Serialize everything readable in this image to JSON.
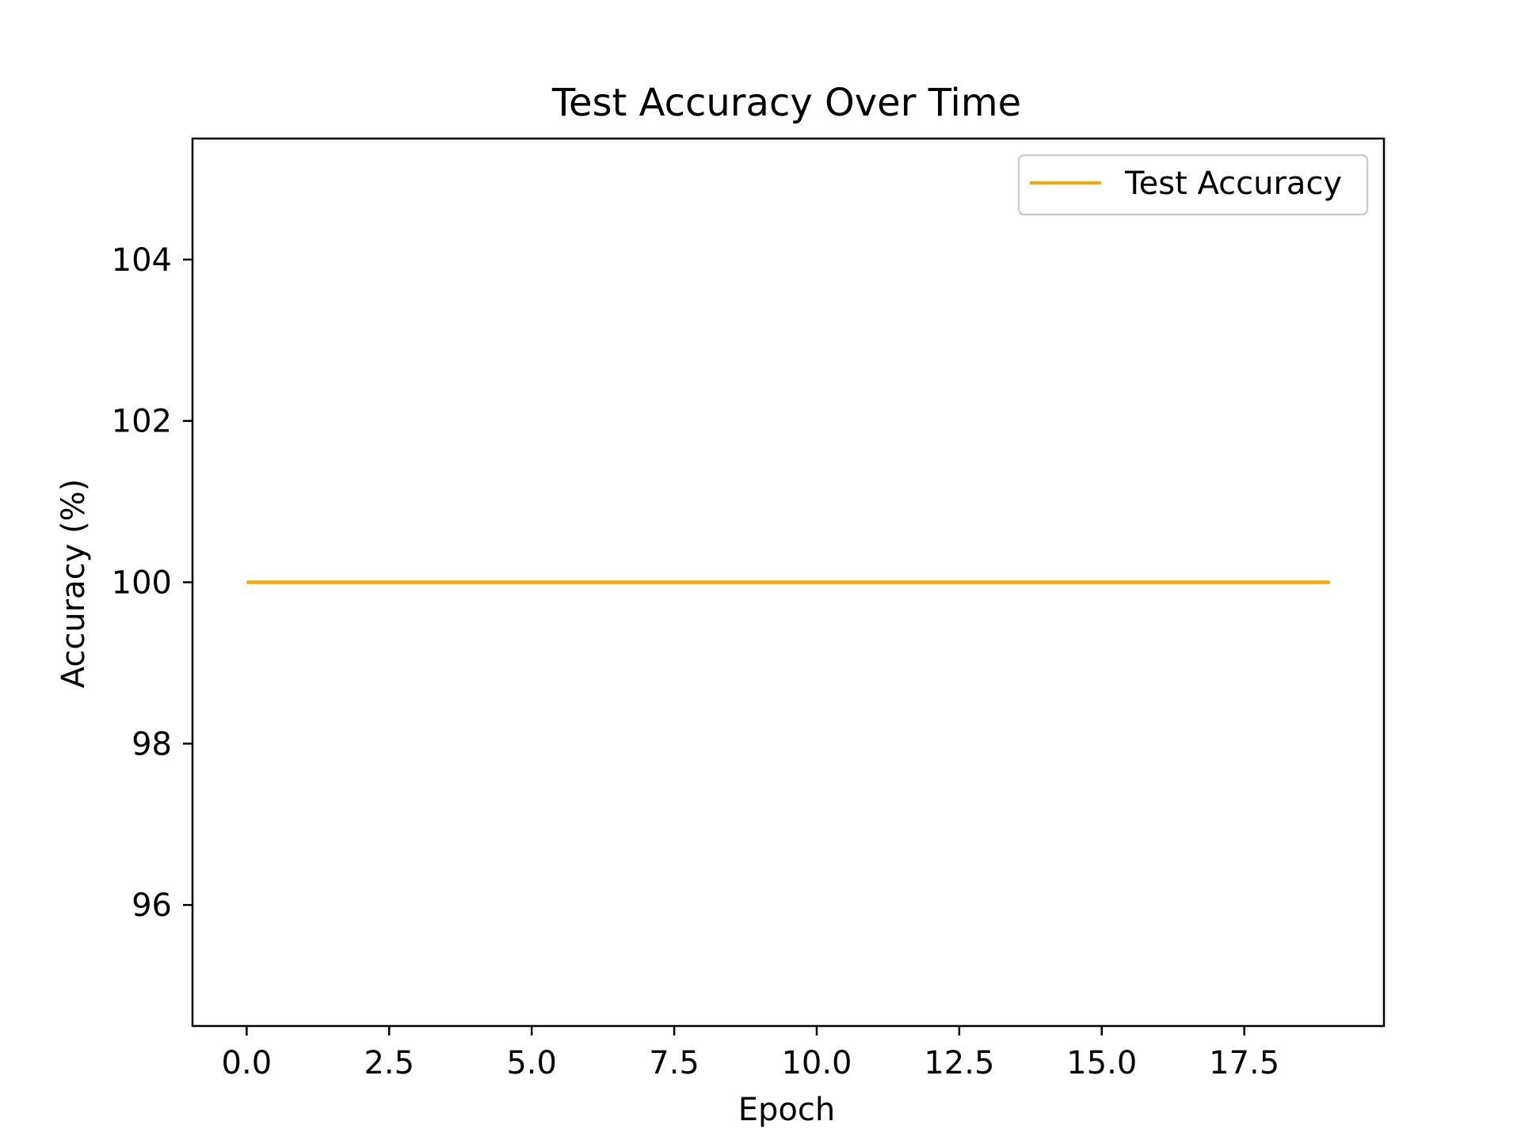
{
  "chart_data": {
    "type": "line",
    "title": "Test Accuracy Over Time",
    "xlabel": "Epoch",
    "ylabel": "Accuracy (%)",
    "xlim": [
      -0.95,
      19.95
    ],
    "ylim": [
      94.5,
      105.5
    ],
    "xticks": [
      0.0,
      2.5,
      5.0,
      7.5,
      10.0,
      12.5,
      15.0,
      17.5
    ],
    "xtick_labels": [
      "0.0",
      "2.5",
      "5.0",
      "7.5",
      "10.0",
      "12.5",
      "15.0",
      "17.5"
    ],
    "yticks": [
      96,
      98,
      100,
      102,
      104
    ],
    "ytick_labels": [
      "96",
      "98",
      "100",
      "102",
      "104"
    ],
    "grid": false,
    "legend_position": "top-right",
    "series": [
      {
        "name": "Test Accuracy",
        "color": "#FFA500",
        "x": [
          0,
          1,
          2,
          3,
          4,
          5,
          6,
          7,
          8,
          9,
          10,
          11,
          12,
          13,
          14,
          15,
          16,
          17,
          18,
          19
        ],
        "y": [
          100,
          100,
          100,
          100,
          100,
          100,
          100,
          100,
          100,
          100,
          100,
          100,
          100,
          100,
          100,
          100,
          100,
          100,
          100,
          100
        ]
      }
    ]
  }
}
